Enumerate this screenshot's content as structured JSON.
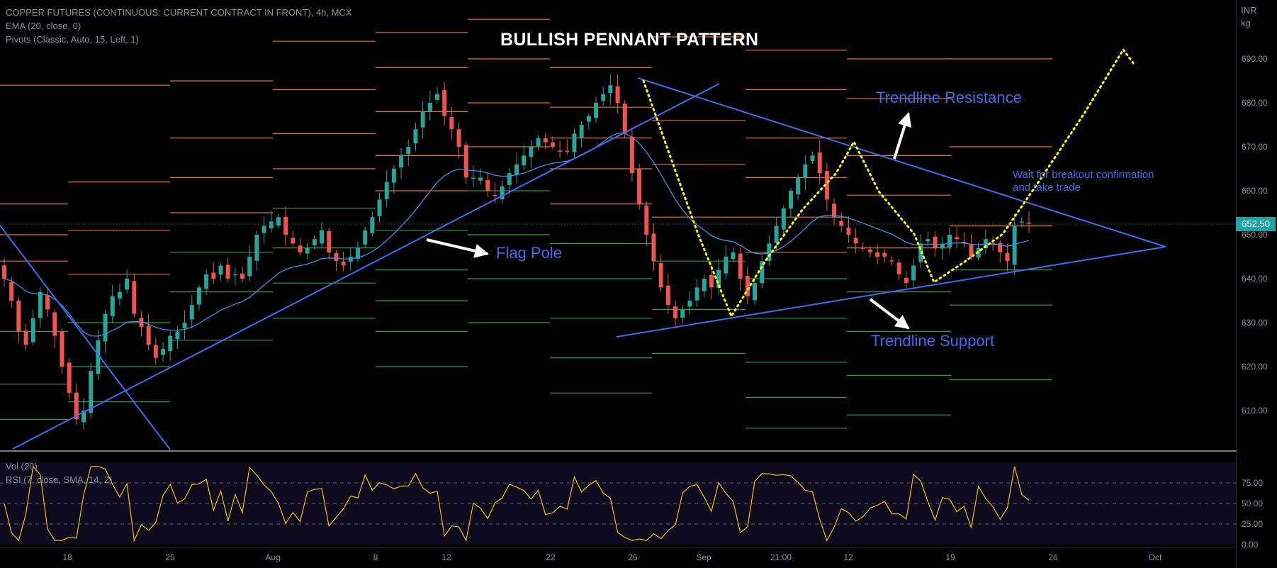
{
  "header": {
    "symbol": "COPPER FUTURES (CONTINUOUS: CURRENT CONTRACT IN FRONT), 4h, MCX",
    "ema": "EMA (20, close, 0)",
    "pivots": "Pivots (Classic, Auto, 15, Left, 1)"
  },
  "currency": "INR",
  "unit": "kg",
  "title": "BULLISH PENNANT PATTERN",
  "annotations": {
    "flag_pole": "Flag Pole",
    "resistance": "Trendline Resistance",
    "support": "Trendline Support",
    "note_line1": "Wait for breakout confirmation",
    "note_line2": "and take trade"
  },
  "last_price": "652.50",
  "indicators": {
    "vol": "Vol (20)",
    "rsi": "RSI (7, close, SMA, 14, 2)"
  },
  "colors": {
    "up": "#26a69a",
    "down": "#ef5350",
    "trendline": "#3d6cf0",
    "ema": "#3d8ee8",
    "pivot_resistance": "#e8741e",
    "pivot_support": "#2f9e44",
    "path": "#ffff00",
    "rsi": "#e5c21a"
  },
  "chart_data": {
    "type": "candlestick",
    "price_axis_ticks": [
      "690.00",
      "680.00",
      "670.00",
      "660.00",
      "650.00",
      "640.00",
      "630.00",
      "620.00",
      "610.00"
    ],
    "price_range": [
      602,
      702
    ],
    "time_axis_ticks": [
      "18",
      "25",
      "Aug",
      "8",
      "12",
      "22",
      "26",
      "Sep",
      "21:00",
      "12",
      "19",
      "26",
      "Oct"
    ],
    "closes": [
      640,
      635,
      628,
      625,
      631,
      637,
      633,
      627,
      620,
      614,
      608,
      610,
      619,
      626,
      632,
      636,
      637,
      640,
      632,
      629,
      625,
      622,
      624,
      627,
      628,
      630,
      634,
      638,
      641,
      640,
      643,
      640,
      641,
      640,
      645,
      650,
      652,
      653,
      654,
      650,
      648,
      646,
      647,
      649,
      651,
      646,
      644,
      643,
      645,
      647,
      651,
      654,
      658,
      662,
      665,
      668,
      670,
      674,
      678,
      680,
      682,
      677,
      674,
      670,
      663,
      663,
      663,
      660,
      659,
      661,
      664,
      666,
      668,
      670,
      672,
      671,
      670,
      669,
      669,
      673,
      675,
      677,
      680,
      682,
      684,
      680,
      673,
      664,
      657,
      650,
      644,
      638,
      634,
      631,
      633,
      635,
      638,
      640,
      638,
      642,
      645,
      646,
      640,
      636,
      639,
      644,
      648,
      652,
      656,
      660,
      663,
      666,
      668,
      664,
      658,
      654,
      652,
      650,
      648,
      647,
      646,
      645,
      645,
      644,
      641,
      639,
      643,
      648,
      649,
      647,
      648,
      650,
      649,
      648,
      645,
      647,
      649,
      648,
      646,
      644,
      652,
      653,
      652.5
    ],
    "rsi": {
      "ticks": [
        "75.00",
        "50.00",
        "25.00",
        "0.00"
      ],
      "range": [
        0,
        100
      ]
    }
  }
}
